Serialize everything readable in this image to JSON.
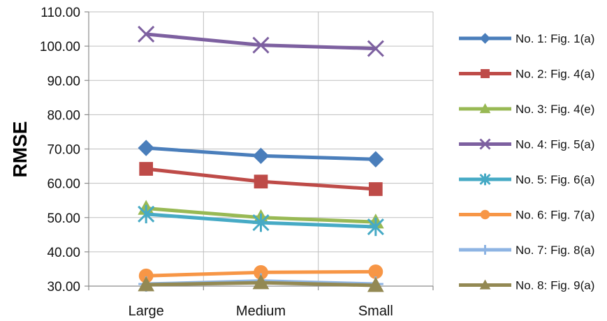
{
  "chart_data": {
    "type": "line",
    "title": "",
    "xlabel": "",
    "ylabel": "RMSE",
    "categories": [
      "Large",
      "Medium",
      "Small"
    ],
    "ylim": [
      30,
      110
    ],
    "yticks": [
      "30.00",
      "40.00",
      "50.00",
      "60.00",
      "70.00",
      "80.00",
      "90.00",
      "100.00",
      "110.00"
    ],
    "grid": true,
    "legend_position": "right",
    "series": [
      {
        "name": "No. 1: Fig. 1(a)",
        "color": "#4a7ebb",
        "marker": "diamond",
        "values": [
          70.3,
          68.0,
          67.0
        ]
      },
      {
        "name": "No. 2: Fig. 4(a)",
        "color": "#be4b48",
        "marker": "square",
        "values": [
          64.2,
          60.5,
          58.3
        ]
      },
      {
        "name": "No. 3: Fig. 4(e)",
        "color": "#98b954",
        "marker": "triangle",
        "values": [
          52.7,
          50.0,
          48.7
        ]
      },
      {
        "name": "No. 4: Fig. 5(a)",
        "color": "#7d60a0",
        "marker": "x",
        "values": [
          103.5,
          100.3,
          99.3
        ]
      },
      {
        "name": "No. 5: Fig. 6(a)",
        "color": "#46aac5",
        "marker": "star",
        "values": [
          51.0,
          48.5,
          47.3
        ]
      },
      {
        "name": "No. 6: Fig. 7(a)",
        "color": "#f79646",
        "marker": "circle",
        "values": [
          33.0,
          34.0,
          34.2
        ]
      },
      {
        "name": "No. 7:  Fig. 8(a)",
        "color": "#8eb4e3",
        "marker": "plus",
        "values": [
          30.6,
          31.5,
          30.6
        ]
      },
      {
        "name": "No. 8:  Fig. 9(a)",
        "color": "#938953",
        "marker": "triangle",
        "values": [
          30.4,
          31.0,
          30.2
        ]
      }
    ]
  }
}
